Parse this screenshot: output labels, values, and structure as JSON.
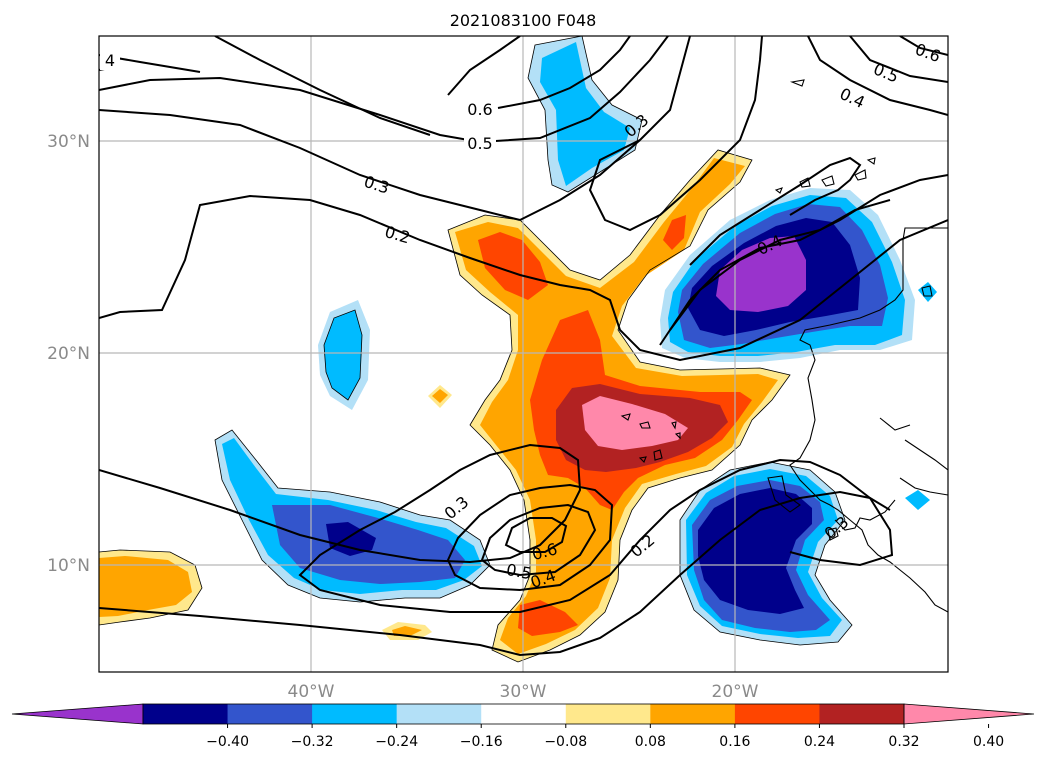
{
  "title": "2021083100 F048",
  "lat_labels": [
    "30°N",
    "20°N",
    "10°N"
  ],
  "lon_labels": [
    "40°W",
    "30°W",
    "20°W"
  ],
  "contour_labels": [
    "4",
    "0.6",
    "0.5",
    "0.3",
    "0.3",
    "0.2",
    "0.6",
    "0.5",
    "0.4",
    "0.4",
    "0.3",
    "0.6",
    "0.5",
    "0.4",
    "0.2",
    "0.3"
  ],
  "colorbar": {
    "ticks": [
      "−0.40",
      "−0.32",
      "−0.24",
      "−0.16",
      "−0.08",
      "0.08",
      "0.16",
      "0.24",
      "0.32",
      "0.40"
    ],
    "colors": [
      "#9933cc",
      "#00008b",
      "#3355cc",
      "#00bbff",
      "#b3e0f7",
      "#ffffff",
      "#ffe88c",
      "#ffa500",
      "#ff4500",
      "#b22222",
      "#ff88aa"
    ]
  },
  "fill_colors": {
    "light_blue": "#b3e0f7",
    "cyan": "#00bbff",
    "blue": "#3355cc",
    "navy": "#00008b",
    "purple": "#9933cc",
    "light_yellow": "#ffe88c",
    "orange": "#ffa500",
    "red_orange": "#ff4500",
    "dark_red": "#b22222",
    "pink": "#ff88aa"
  }
}
